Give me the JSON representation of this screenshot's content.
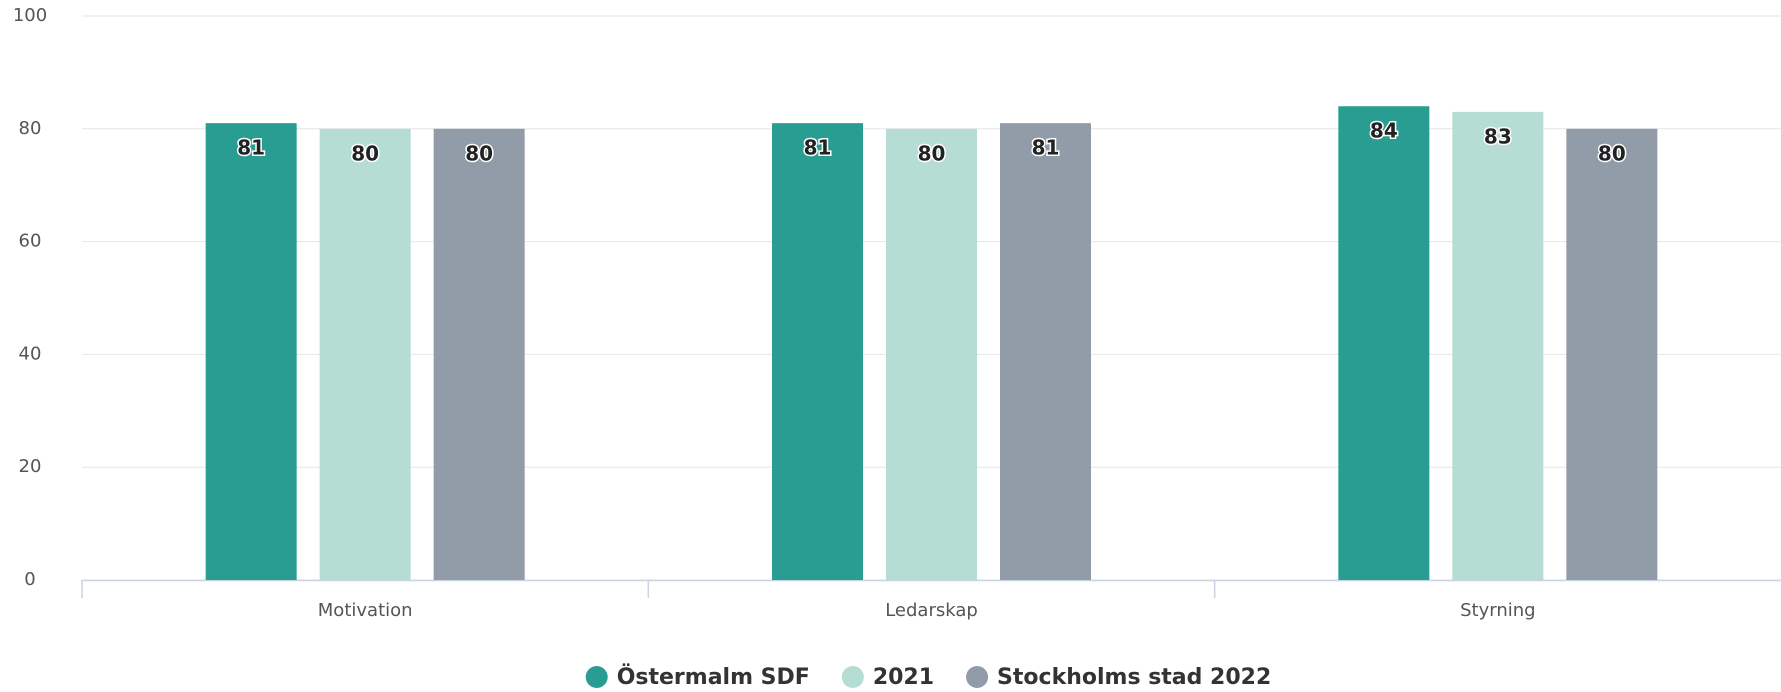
{
  "chart_data": {
    "type": "bar",
    "categories": [
      "Motivation",
      "Ledarskap",
      "Styrning"
    ],
    "series": [
      {
        "name": "Östermalm SDF",
        "color": "#2a9d93",
        "values": [
          81,
          81,
          84
        ]
      },
      {
        "name": "2021",
        "color": "#b5ddd4",
        "values": [
          80,
          80,
          83
        ]
      },
      {
        "name": "Stockholms stad 2022",
        "color": "#919ca8",
        "values": [
          80,
          81,
          80
        ]
      }
    ],
    "ylim": [
      0,
      100
    ],
    "yticks": [
      0,
      20,
      40,
      60,
      80,
      100
    ],
    "grid": true,
    "legend": "bottom"
  }
}
